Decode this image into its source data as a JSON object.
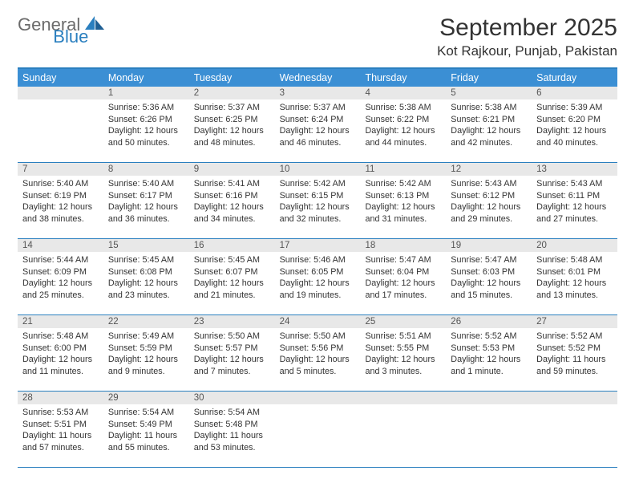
{
  "brand": {
    "part1": "General",
    "part2": "Blue"
  },
  "title": "September 2025",
  "location": "Kot Rajkour, Punjab, Pakistan",
  "colors": {
    "header_bg": "#3b8fd4",
    "border": "#2a7fbf",
    "daynum_bg": "#e8e8e8",
    "logo_gray": "#6b6b6b",
    "logo_blue": "#2a7fbf"
  },
  "weekdays": [
    "Sunday",
    "Monday",
    "Tuesday",
    "Wednesday",
    "Thursday",
    "Friday",
    "Saturday"
  ],
  "weeks": [
    [
      {
        "n": "",
        "sunrise": "",
        "sunset": "",
        "daylight": ""
      },
      {
        "n": "1",
        "sunrise": "Sunrise: 5:36 AM",
        "sunset": "Sunset: 6:26 PM",
        "daylight": "Daylight: 12 hours and 50 minutes."
      },
      {
        "n": "2",
        "sunrise": "Sunrise: 5:37 AM",
        "sunset": "Sunset: 6:25 PM",
        "daylight": "Daylight: 12 hours and 48 minutes."
      },
      {
        "n": "3",
        "sunrise": "Sunrise: 5:37 AM",
        "sunset": "Sunset: 6:24 PM",
        "daylight": "Daylight: 12 hours and 46 minutes."
      },
      {
        "n": "4",
        "sunrise": "Sunrise: 5:38 AM",
        "sunset": "Sunset: 6:22 PM",
        "daylight": "Daylight: 12 hours and 44 minutes."
      },
      {
        "n": "5",
        "sunrise": "Sunrise: 5:38 AM",
        "sunset": "Sunset: 6:21 PM",
        "daylight": "Daylight: 12 hours and 42 minutes."
      },
      {
        "n": "6",
        "sunrise": "Sunrise: 5:39 AM",
        "sunset": "Sunset: 6:20 PM",
        "daylight": "Daylight: 12 hours and 40 minutes."
      }
    ],
    [
      {
        "n": "7",
        "sunrise": "Sunrise: 5:40 AM",
        "sunset": "Sunset: 6:19 PM",
        "daylight": "Daylight: 12 hours and 38 minutes."
      },
      {
        "n": "8",
        "sunrise": "Sunrise: 5:40 AM",
        "sunset": "Sunset: 6:17 PM",
        "daylight": "Daylight: 12 hours and 36 minutes."
      },
      {
        "n": "9",
        "sunrise": "Sunrise: 5:41 AM",
        "sunset": "Sunset: 6:16 PM",
        "daylight": "Daylight: 12 hours and 34 minutes."
      },
      {
        "n": "10",
        "sunrise": "Sunrise: 5:42 AM",
        "sunset": "Sunset: 6:15 PM",
        "daylight": "Daylight: 12 hours and 32 minutes."
      },
      {
        "n": "11",
        "sunrise": "Sunrise: 5:42 AM",
        "sunset": "Sunset: 6:13 PM",
        "daylight": "Daylight: 12 hours and 31 minutes."
      },
      {
        "n": "12",
        "sunrise": "Sunrise: 5:43 AM",
        "sunset": "Sunset: 6:12 PM",
        "daylight": "Daylight: 12 hours and 29 minutes."
      },
      {
        "n": "13",
        "sunrise": "Sunrise: 5:43 AM",
        "sunset": "Sunset: 6:11 PM",
        "daylight": "Daylight: 12 hours and 27 minutes."
      }
    ],
    [
      {
        "n": "14",
        "sunrise": "Sunrise: 5:44 AM",
        "sunset": "Sunset: 6:09 PM",
        "daylight": "Daylight: 12 hours and 25 minutes."
      },
      {
        "n": "15",
        "sunrise": "Sunrise: 5:45 AM",
        "sunset": "Sunset: 6:08 PM",
        "daylight": "Daylight: 12 hours and 23 minutes."
      },
      {
        "n": "16",
        "sunrise": "Sunrise: 5:45 AM",
        "sunset": "Sunset: 6:07 PM",
        "daylight": "Daylight: 12 hours and 21 minutes."
      },
      {
        "n": "17",
        "sunrise": "Sunrise: 5:46 AM",
        "sunset": "Sunset: 6:05 PM",
        "daylight": "Daylight: 12 hours and 19 minutes."
      },
      {
        "n": "18",
        "sunrise": "Sunrise: 5:47 AM",
        "sunset": "Sunset: 6:04 PM",
        "daylight": "Daylight: 12 hours and 17 minutes."
      },
      {
        "n": "19",
        "sunrise": "Sunrise: 5:47 AM",
        "sunset": "Sunset: 6:03 PM",
        "daylight": "Daylight: 12 hours and 15 minutes."
      },
      {
        "n": "20",
        "sunrise": "Sunrise: 5:48 AM",
        "sunset": "Sunset: 6:01 PM",
        "daylight": "Daylight: 12 hours and 13 minutes."
      }
    ],
    [
      {
        "n": "21",
        "sunrise": "Sunrise: 5:48 AM",
        "sunset": "Sunset: 6:00 PM",
        "daylight": "Daylight: 12 hours and 11 minutes."
      },
      {
        "n": "22",
        "sunrise": "Sunrise: 5:49 AM",
        "sunset": "Sunset: 5:59 PM",
        "daylight": "Daylight: 12 hours and 9 minutes."
      },
      {
        "n": "23",
        "sunrise": "Sunrise: 5:50 AM",
        "sunset": "Sunset: 5:57 PM",
        "daylight": "Daylight: 12 hours and 7 minutes."
      },
      {
        "n": "24",
        "sunrise": "Sunrise: 5:50 AM",
        "sunset": "Sunset: 5:56 PM",
        "daylight": "Daylight: 12 hours and 5 minutes."
      },
      {
        "n": "25",
        "sunrise": "Sunrise: 5:51 AM",
        "sunset": "Sunset: 5:55 PM",
        "daylight": "Daylight: 12 hours and 3 minutes."
      },
      {
        "n": "26",
        "sunrise": "Sunrise: 5:52 AM",
        "sunset": "Sunset: 5:53 PM",
        "daylight": "Daylight: 12 hours and 1 minute."
      },
      {
        "n": "27",
        "sunrise": "Sunrise: 5:52 AM",
        "sunset": "Sunset: 5:52 PM",
        "daylight": "Daylight: 11 hours and 59 minutes."
      }
    ],
    [
      {
        "n": "28",
        "sunrise": "Sunrise: 5:53 AM",
        "sunset": "Sunset: 5:51 PM",
        "daylight": "Daylight: 11 hours and 57 minutes."
      },
      {
        "n": "29",
        "sunrise": "Sunrise: 5:54 AM",
        "sunset": "Sunset: 5:49 PM",
        "daylight": "Daylight: 11 hours and 55 minutes."
      },
      {
        "n": "30",
        "sunrise": "Sunrise: 5:54 AM",
        "sunset": "Sunset: 5:48 PM",
        "daylight": "Daylight: 11 hours and 53 minutes."
      },
      {
        "n": "",
        "sunrise": "",
        "sunset": "",
        "daylight": ""
      },
      {
        "n": "",
        "sunrise": "",
        "sunset": "",
        "daylight": ""
      },
      {
        "n": "",
        "sunrise": "",
        "sunset": "",
        "daylight": ""
      },
      {
        "n": "",
        "sunrise": "",
        "sunset": "",
        "daylight": ""
      }
    ]
  ]
}
